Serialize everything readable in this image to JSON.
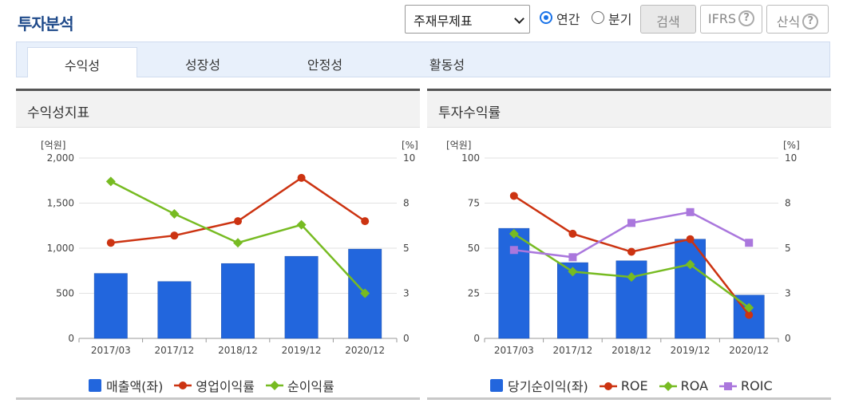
{
  "header": {
    "title": "투자분석",
    "report_select": "주재무제표",
    "period_options": [
      {
        "label": "연간",
        "checked": true
      },
      {
        "label": "분기",
        "checked": false
      }
    ],
    "search_label": "검색",
    "ifrs_label": "IFRS",
    "calc_label": "산식",
    "help_glyph": "?"
  },
  "tabs": [
    {
      "label": "수익성",
      "active": true
    },
    {
      "label": "성장성",
      "active": false
    },
    {
      "label": "안정성",
      "active": false
    },
    {
      "label": "활동성",
      "active": false
    }
  ],
  "charts": {
    "left_title": "수익성지표",
    "right_title": "투자수익률"
  },
  "chart_data": [
    {
      "type": "bar",
      "title": "수익성지표",
      "categories": [
        "2017/03",
        "2017/12",
        "2018/12",
        "2019/12",
        "2020/12"
      ],
      "left_unit": "[억원]",
      "right_unit": "[%]",
      "left_ticks": [
        "2,000",
        "1,500",
        "1,000",
        "500",
        "0"
      ],
      "right_ticks": [
        "10",
        "8",
        "5",
        "3",
        "0"
      ],
      "ylim_left": [
        0,
        2000
      ],
      "ylim_right": [
        0,
        10
      ],
      "grid": true,
      "legend_position": "bottom",
      "series": [
        {
          "name": "매출액(좌)",
          "type": "bar",
          "axis": "left",
          "color": "#2266dd",
          "values": [
            720,
            630,
            830,
            910,
            990
          ]
        },
        {
          "name": "영업이익률",
          "type": "line",
          "axis": "right",
          "marker": "circle",
          "color": "#cc3311",
          "values": [
            5.3,
            5.7,
            6.5,
            8.9,
            6.5
          ]
        },
        {
          "name": "순이익률",
          "type": "line",
          "axis": "right",
          "marker": "diamond",
          "color": "#77bb22",
          "values": [
            8.7,
            6.9,
            5.3,
            6.3,
            2.5
          ]
        }
      ]
    },
    {
      "type": "bar",
      "title": "투자수익률",
      "categories": [
        "2017/03",
        "2017/12",
        "2018/12",
        "2019/12",
        "2020/12"
      ],
      "left_unit": "[억원]",
      "right_unit": "[%]",
      "left_ticks": [
        "100",
        "75",
        "50",
        "25",
        "0"
      ],
      "right_ticks": [
        "10",
        "8",
        "5",
        "3",
        "0"
      ],
      "ylim_left": [
        0,
        100
      ],
      "ylim_right": [
        0,
        10
      ],
      "grid": true,
      "legend_position": "bottom",
      "series": [
        {
          "name": "당기순이익(좌)",
          "type": "bar",
          "axis": "left",
          "color": "#2266dd",
          "values": [
            61,
            42,
            43,
            55,
            24
          ]
        },
        {
          "name": "ROE",
          "type": "line",
          "axis": "right",
          "marker": "circle",
          "color": "#cc3311",
          "values": [
            7.9,
            5.8,
            4.8,
            5.5,
            1.3
          ]
        },
        {
          "name": "ROA",
          "type": "line",
          "axis": "right",
          "marker": "diamond",
          "color": "#77bb22",
          "values": [
            5.8,
            3.7,
            3.4,
            4.1,
            1.7
          ]
        },
        {
          "name": "ROIC",
          "type": "line",
          "axis": "right",
          "marker": "square",
          "color": "#aa77dd",
          "values": [
            4.9,
            4.5,
            6.4,
            7.0,
            5.3
          ]
        }
      ]
    }
  ]
}
